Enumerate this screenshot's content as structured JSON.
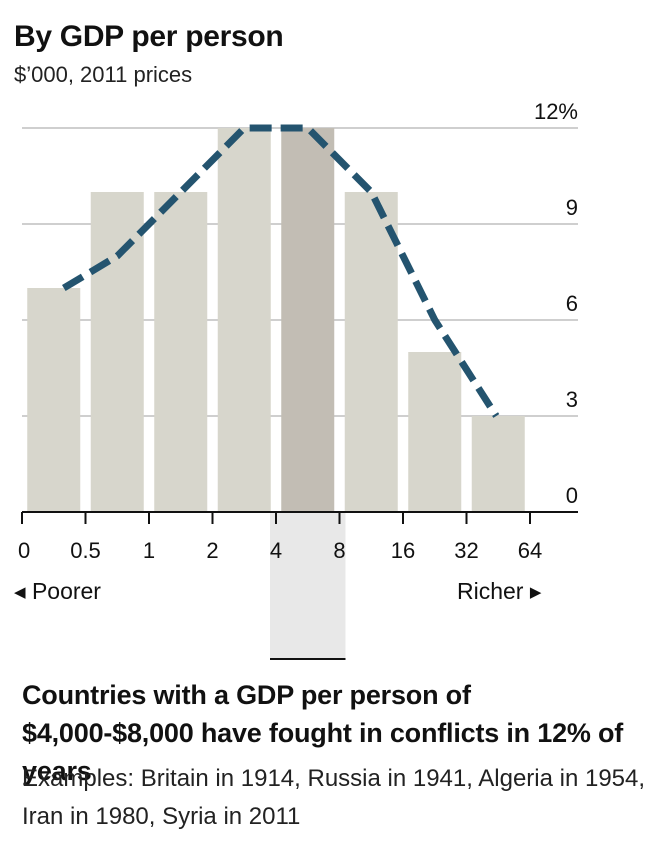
{
  "title": "By GDP per person",
  "subtitle": "$’000, 2011 prices",
  "direction": {
    "left": "Poorer",
    "right": "Richer"
  },
  "annotation": {
    "headline": "Countries with a GDP per person of $4,000-$8,000 have fought in conflicts in 12% of years",
    "body": "Examples: Britain in 1914, Russia in 1941, Algeria in 1954, Iran in 1980, Syria in 2011"
  },
  "chart_data": {
    "type": "bar",
    "x_ticks": [
      "0",
      "0.5",
      "1",
      "2",
      "4",
      "8",
      "16",
      "32",
      "64"
    ],
    "categories": [
      "0-0.5",
      "0.5-1",
      "1-2",
      "2-4",
      "4-8",
      "8-16",
      "16-32",
      "32-64"
    ],
    "values": [
      7,
      10,
      10,
      12,
      12,
      10,
      5,
      3
    ],
    "line_values": [
      7,
      8,
      10,
      12,
      12,
      10,
      6,
      3
    ],
    "highlight_category": "4-8",
    "y_ticks": [
      "0",
      "3",
      "6",
      "9",
      "12%"
    ],
    "ylim": [
      0,
      12
    ],
    "grid": true,
    "colors": {
      "bar": "#d7d6cc",
      "bar_highlight": "#c2bdb4",
      "line": "#24546f",
      "band": "#e8e8e8",
      "grid": "#cfcfcf"
    }
  }
}
